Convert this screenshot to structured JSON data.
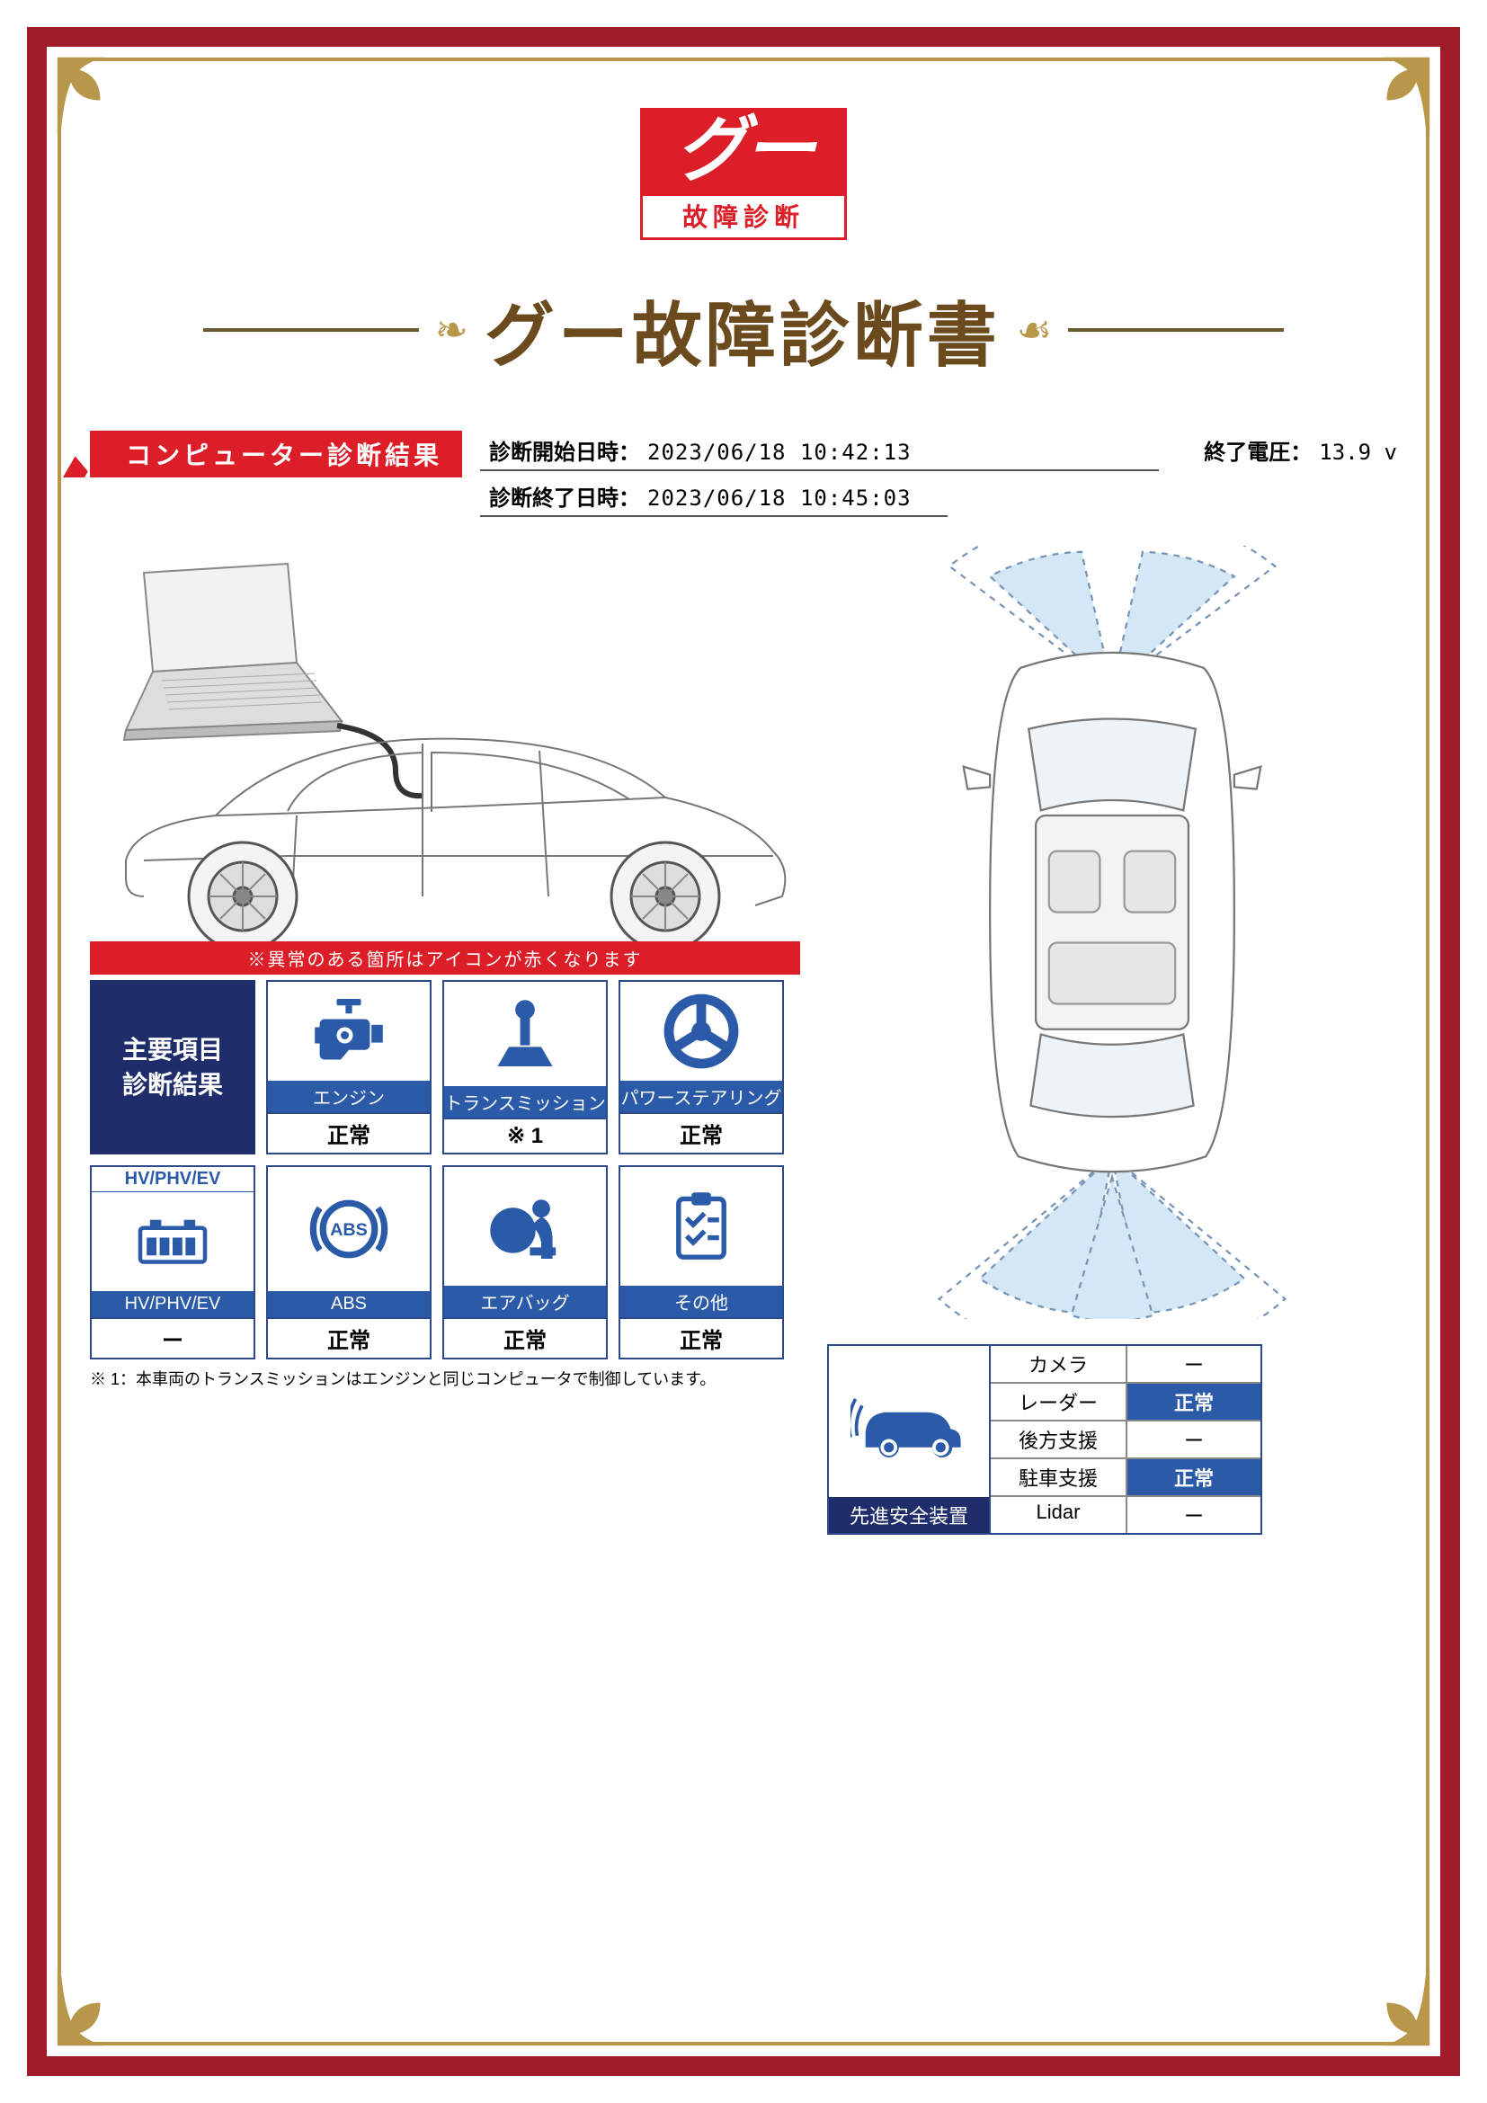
{
  "colors": {
    "frame": "#a01c2a",
    "gold": "#b8964a",
    "title": "#6b4a1e",
    "red": "#dc1e28",
    "blue": "#2a5aa8",
    "navy": "#1f2e6b",
    "icon_blue": "#2a5aa8",
    "sensor_fill": "#cfe5f5"
  },
  "logo": {
    "main": "グー",
    "sub": "故障診断"
  },
  "title": "グー故障診断書",
  "section_tag": "コンピューター診断結果",
  "meta": {
    "start_label": "診断開始日時：",
    "start_value": "2023/06/18 10:42:13",
    "end_label": "診断終了日時：",
    "end_value": "2023/06/18 10:45:03",
    "voltage_label": "終了電圧：",
    "voltage_value": "13.9 v"
  },
  "warn_banner": "※異常のある箇所はアイコンが赤くなります",
  "lead_tile": "主要項目\n診断結果",
  "tiles": [
    {
      "key": "engine",
      "label": "エンジン",
      "value": "正常"
    },
    {
      "key": "transmission",
      "label": "トランスミッション",
      "value": "※ 1"
    },
    {
      "key": "powersteer",
      "label": "パワーステアリング",
      "value": "正常"
    }
  ],
  "tiles2_header": {
    "top": "HV/PHV/EV",
    "label": "HV/PHV/EV",
    "value": "ー"
  },
  "tiles2": [
    {
      "key": "abs",
      "label": "ABS",
      "value": "正常"
    },
    {
      "key": "airbag",
      "label": "エアバッグ",
      "value": "正常"
    },
    {
      "key": "other",
      "label": "その他",
      "value": "正常"
    }
  ],
  "footnote": "※ 1：本車両のトランスミッションはエンジンと同じコンピュータで制御しています。",
  "safety": {
    "header": "先進安全装置",
    "rows": [
      {
        "label": "カメラ",
        "value": "ー",
        "ok": false
      },
      {
        "label": "レーダー",
        "value": "正常",
        "ok": true
      },
      {
        "label": "後方支援",
        "value": "ー",
        "ok": false
      },
      {
        "label": "駐車支援",
        "value": "正常",
        "ok": true
      },
      {
        "label": "Lidar",
        "value": "ー",
        "ok": false
      }
    ]
  }
}
